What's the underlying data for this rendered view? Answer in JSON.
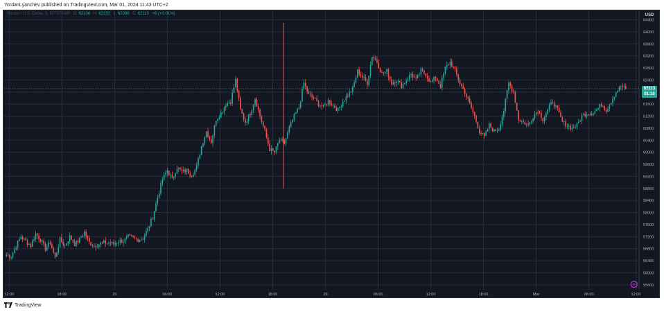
{
  "header": {
    "published": "YordanLyanchev published on TradingView.com, Mar 01, 2024 11:43 UTC+2"
  },
  "legend": {
    "symbol": "Bitcoin / U.S. Dollar, 5, BITSTAMP",
    "open_label": "O",
    "open": "62106",
    "high_label": "H",
    "high": "62150",
    "low_label": "L",
    "low": "62096",
    "close_label": "C",
    "close": "62113",
    "change": "+6 (+0.01%)"
  },
  "price_scale": {
    "currency": "USD",
    "last_price": "62113",
    "countdown": "01:10"
  },
  "footer": {
    "brand": "TradingView",
    "logo_icon": "tradingview-logo-icon"
  },
  "colors": {
    "background": "#131722",
    "up": "#26a69a",
    "down": "#ef5350",
    "grid": "#2a2e39",
    "accent": "#e040fb"
  },
  "chart_data": {
    "type": "candlestick",
    "y_ticks": [
      64400,
      64000,
      63600,
      63200,
      62800,
      62400,
      62000,
      61600,
      61200,
      60800,
      60400,
      60000,
      59600,
      59200,
      58800,
      58400,
      58000,
      57600,
      57200,
      56800,
      56400,
      56000,
      55600
    ],
    "ylim": [
      55550,
      64550
    ],
    "x_ticks": [
      "12:00",
      "18:00",
      "29",
      "06:00",
      "12:00",
      "18:00",
      "29",
      "06:00",
      "12:00",
      "18:00",
      "Mar",
      "06:00",
      "12:00"
    ],
    "x_tick_fracs": [
      0.008,
      0.091,
      0.174,
      0.257,
      0.34,
      0.423,
      0.506,
      0.589,
      0.672,
      0.755,
      0.838,
      0.921,
      0.995
    ],
    "series": [
      {
        "values": [
          56600,
          56550,
          56900,
          57200,
          57050,
          56900,
          57300,
          57100,
          56800,
          57000,
          56500,
          57100,
          56900,
          57200,
          56950,
          57100,
          57350,
          57000,
          56900,
          56950,
          57000,
          57000,
          56950,
          57050,
          57050,
          57200,
          57150,
          57100,
          57150,
          57450,
          57850,
          58500,
          59100,
          59400,
          59100,
          59500,
          59350,
          59400,
          59250,
          59500,
          60200,
          60700,
          60350,
          61100,
          61300,
          61600,
          61700,
          62400,
          61400,
          61000,
          61300,
          61800,
          61200,
          60700,
          60100,
          60000,
          60400,
          60300,
          60800,
          61200,
          61500,
          62300,
          61900,
          61800,
          61600,
          61500,
          61700,
          61550,
          61400,
          61700,
          61900,
          62100,
          62700,
          62500,
          62300,
          63200,
          63000,
          62600,
          62700,
          62300,
          62400,
          62200,
          62400,
          62600,
          62400,
          62700,
          62600,
          62300,
          62500,
          62200,
          62800,
          63000,
          62700,
          62300,
          62000,
          61600,
          61200,
          60700,
          60500,
          60900,
          60700,
          60800,
          61400,
          62300,
          62000,
          61100,
          61000,
          60900,
          61200,
          61400,
          61100,
          61400,
          61700,
          61400,
          61000,
          60900,
          60800,
          60900,
          61200,
          61300,
          61300,
          61400,
          61600,
          61400,
          61700,
          62000,
          62200,
          62100
        ]
      }
    ]
  }
}
